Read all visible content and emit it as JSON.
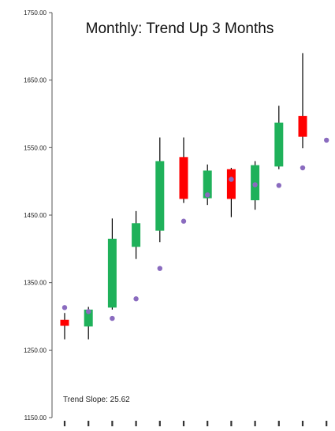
{
  "chart_data": {
    "type": "candlestick",
    "title": "Monthly: Trend Up 3 Months",
    "annotation": "Trend Slope: 25.62",
    "ylim": [
      1150,
      1750
    ],
    "yticks": [
      1150,
      1250,
      1350,
      1450,
      1550,
      1650,
      1750
    ],
    "ytick_labels": [
      "1150.00",
      "1250.00",
      "1350.00",
      "1450.00",
      "1550.00",
      "1650.00",
      "1750.00"
    ],
    "grid": false,
    "colors": {
      "up": "#1fb15a",
      "down": "#ff0000",
      "trend_point": "#8a6bbf",
      "wick": "#000000"
    },
    "candles": [
      {
        "open": 1295,
        "close": 1286,
        "high": 1305,
        "low": 1266
      },
      {
        "open": 1285,
        "close": 1310,
        "high": 1314,
        "low": 1266
      },
      {
        "open": 1313,
        "close": 1415,
        "high": 1445,
        "low": 1310
      },
      {
        "open": 1403,
        "close": 1438,
        "high": 1456,
        "low": 1385
      },
      {
        "open": 1427,
        "close": 1530,
        "high": 1565,
        "low": 1410
      },
      {
        "open": 1536,
        "close": 1474,
        "high": 1565,
        "low": 1468
      },
      {
        "open": 1475,
        "close": 1516,
        "high": 1525,
        "low": 1465
      },
      {
        "open": 1518,
        "close": 1474,
        "high": 1520,
        "low": 1447
      },
      {
        "open": 1472,
        "close": 1524,
        "high": 1530,
        "low": 1458
      },
      {
        "open": 1522,
        "close": 1587,
        "high": 1612,
        "low": 1518
      },
      {
        "open": 1597,
        "close": 1566,
        "high": 1690,
        "low": 1549
      },
      null
    ],
    "trend_points": [
      1313,
      1307,
      1297,
      1326,
      1371,
      1441,
      1480,
      1503,
      1495,
      1494,
      1520,
      1561
    ]
  }
}
